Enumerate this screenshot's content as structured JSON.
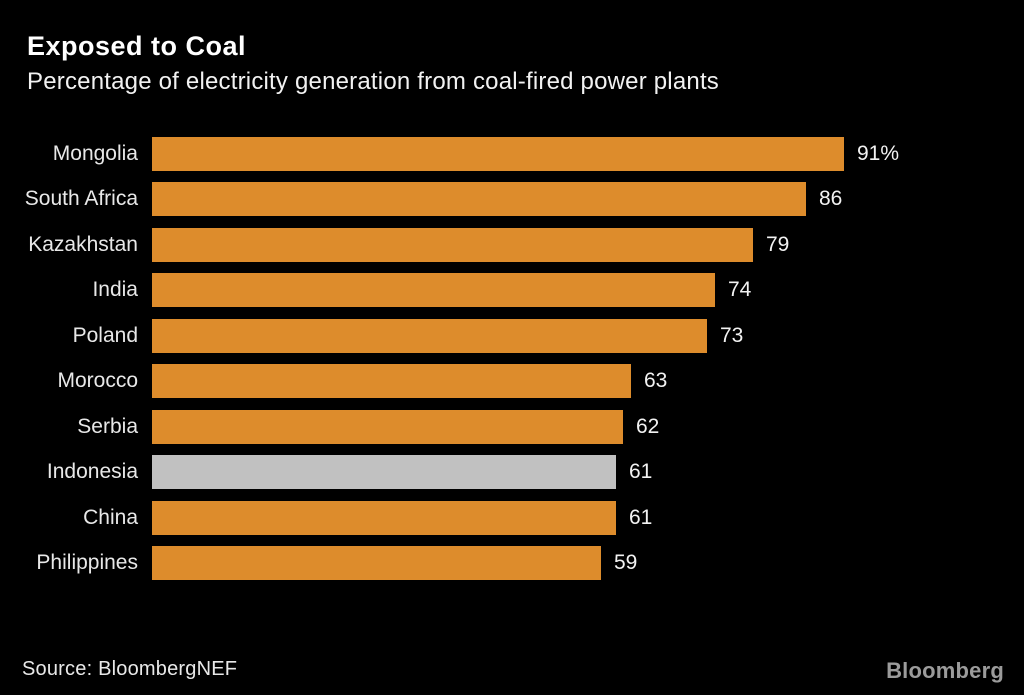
{
  "header": {
    "title": "Exposed to Coal",
    "subtitle": "Percentage of electricity generation from coal-fired power plants"
  },
  "chart_data": {
    "type": "bar",
    "orientation": "horizontal",
    "title": "Exposed to Coal",
    "subtitle": "Percentage of electricity generation from coal-fired power plants",
    "categories": [
      "Mongolia",
      "South Africa",
      "Kazakhstan",
      "India",
      "Poland",
      "Morocco",
      "Serbia",
      "Indonesia",
      "China",
      "Philippines"
    ],
    "values": [
      91,
      86,
      79,
      74,
      73,
      63,
      62,
      61,
      61,
      59
    ],
    "value_labels": [
      "91%",
      "86",
      "79",
      "74",
      "73",
      "63",
      "62",
      "61",
      "61",
      "59"
    ],
    "xlabel": "",
    "ylabel": "",
    "xlim": [
      0,
      91
    ],
    "grid": false,
    "legend": "none",
    "highlighted_category": "Indonesia",
    "colors": {
      "bar": "#dd8c2c",
      "highlight_bar": "#c1c1c1",
      "background": "#000000",
      "label_text": "#e8e8e8",
      "value_text": "#f2f2f2"
    }
  },
  "footer": {
    "source": "Source: BloombergNEF",
    "brand": "Bloomberg"
  }
}
